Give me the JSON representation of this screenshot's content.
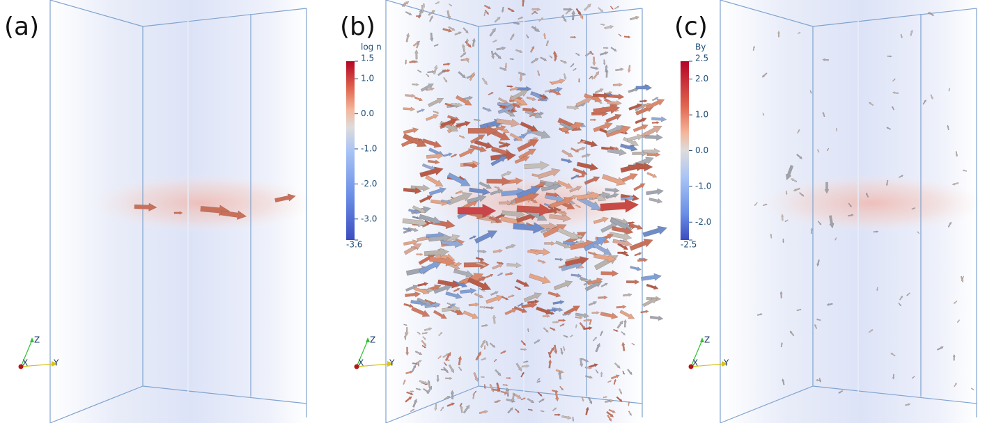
{
  "panels": [
    {
      "label": "(a)",
      "axes": {
        "z": "Z",
        "x": "X",
        "y": "Y"
      }
    },
    {
      "label": "(b)",
      "axes": {
        "z": "Z",
        "x": "X",
        "y": "Y"
      },
      "colorbar": {
        "title": "log n",
        "ticks": [
          {
            "value": 1.5,
            "label": "1.5"
          },
          {
            "value": 1,
            "label": "1.0"
          },
          {
            "value": 0,
            "label": "0.0"
          },
          {
            "value": -1,
            "label": "-1.0"
          },
          {
            "value": -2,
            "label": "-2.0"
          },
          {
            "value": -3,
            "label": "-3.0"
          },
          {
            "value": -3.6,
            "label": "-3.6"
          }
        ]
      }
    },
    {
      "label": "(c)",
      "axes": {
        "z": "Z",
        "x": "X",
        "y": "Y"
      },
      "colorbar": {
        "title": "By",
        "ticks": [
          {
            "value": 2.5,
            "label": "2.5"
          },
          {
            "value": 2,
            "label": "2.0"
          },
          {
            "value": 1,
            "label": "1.0"
          },
          {
            "value": 0,
            "label": "0.0"
          },
          {
            "value": -1,
            "label": "-1.0"
          },
          {
            "value": -2,
            "label": "-2.0"
          },
          {
            "value": -2.5,
            "label": "-2.5"
          }
        ]
      }
    }
  ]
}
